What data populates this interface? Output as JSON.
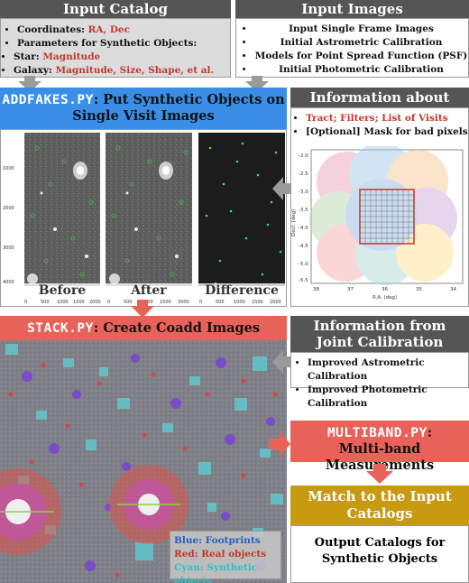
{
  "input_catalog": {
    "title": "Input Catalog",
    "coordinates_label": "Coordinates:",
    "coordinates_value": "RA, Dec",
    "params_label": "Parameters for Synthetic Objects:",
    "star_label": "Star:",
    "star_value": "Magnitude",
    "galaxy_label": "Galaxy:",
    "galaxy_value": "Magnitude, Size, Shape, et al."
  },
  "input_images": {
    "title": "Input Images",
    "items": [
      "Input Single Frame Images",
      "Initial Astrometric Calibration",
      "Models for Point Spread Function (PSF)",
      "Initial Photometric Calibration"
    ]
  },
  "addfakes": {
    "script_name": "ADDFAKES.PY",
    "title_rest": ": Put Synthetic Objects on",
    "title_line2": "Single Visit Images",
    "panel_captions": [
      "Before",
      "After",
      "Difference"
    ],
    "y_ticks": [
      "1000",
      "2000",
      "3000",
      "4000"
    ],
    "x_ticks": [
      "0",
      "500",
      "1000",
      "1500",
      "2000"
    ]
  },
  "info_data": {
    "title": "Information about Data",
    "item1": "Tract; Filters; List of Visits",
    "item2_prefix": "[Optional]",
    "item2_rest": "Mask for bad pixels",
    "plot": {
      "xlabel": "R.A. (deg)",
      "ylabel": "Decl. (deg)",
      "x_ticks": [
        "38",
        "37",
        "36",
        "35",
        "34"
      ],
      "y_ticks": [
        "-2.0",
        "-2.5",
        "-3.0",
        "-3.5",
        "-4.0",
        "-4.5",
        "-5.0",
        "-5.5"
      ]
    }
  },
  "stack": {
    "script_name": "STACK.PY",
    "title_rest": ": Create Coadd Images",
    "legend": {
      "blue": "Blue: Footprints",
      "red": "Red: Real objects",
      "cyan": "Cyan: Synthetic objects"
    }
  },
  "joint_cal": {
    "title_line1": "Information from",
    "title_line2": "Joint Calibration",
    "items": [
      "Improved Astrometric Calibration",
      "Improved Photometric Calibration"
    ]
  },
  "multiband": {
    "script_name": "MULTIBAND.PY",
    "title_rest": ":",
    "title_line2": "Multi-band Measurements"
  },
  "match": {
    "title_line1": "Match to the Input",
    "title_line2": "Catalogs"
  },
  "output": {
    "text": "Output Catalogs for Synthetic Objects"
  },
  "colors": {
    "blue_header": "#3a8ee6",
    "red_header": "#e8625a",
    "gold_header": "#c79a12",
    "dark_header": "#555555",
    "arrow_gray": "#9a9a9a",
    "arrow_red": "#e8625a"
  }
}
